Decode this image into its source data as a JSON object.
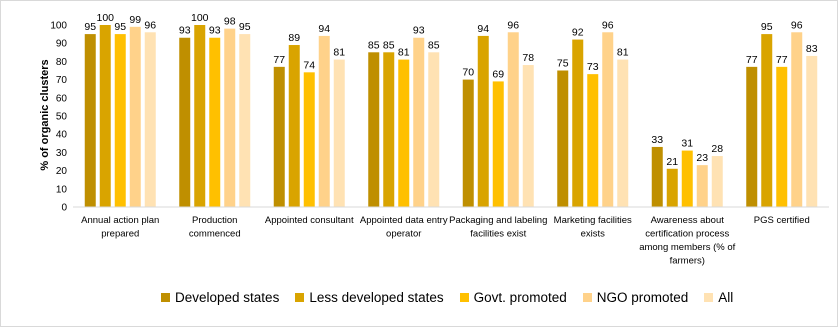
{
  "chart_data": {
    "type": "bar",
    "ylabel": "% of organic clusters",
    "ylim": [
      0,
      100
    ],
    "yticks": [
      0,
      10,
      20,
      30,
      40,
      50,
      60,
      70,
      80,
      90,
      100
    ],
    "grid": false,
    "legend_position": "bottom",
    "categories": [
      [
        "Annual action plan",
        "prepared"
      ],
      [
        "Production",
        "commenced"
      ],
      [
        "Appointed consultant"
      ],
      [
        "Appointed data entry",
        "operator"
      ],
      [
        "Packaging and labeling",
        "facilities exist"
      ],
      [
        "Marketing facilities",
        "exists"
      ],
      [
        "Awareness about",
        "certification process",
        "among members (% of",
        "farmers)"
      ],
      [
        "PGS certified"
      ]
    ],
    "series": [
      {
        "name": "Developed states",
        "color": "#BF8F00",
        "values": [
          95,
          93,
          77,
          85,
          70,
          75,
          33,
          77
        ]
      },
      {
        "name": "Less developed states",
        "color": "#D9A400",
        "values": [
          100,
          100,
          89,
          85,
          94,
          92,
          21,
          95
        ]
      },
      {
        "name": "Govt. promoted",
        "color": "#FFC000",
        "values": [
          95,
          93,
          74,
          81,
          69,
          73,
          31,
          77
        ]
      },
      {
        "name": "NGO promoted",
        "color": "#FFD28A",
        "values": [
          99,
          98,
          94,
          93,
          96,
          96,
          23,
          96
        ]
      },
      {
        "name": "All",
        "color": "#FFE2B3",
        "values": [
          96,
          95,
          81,
          85,
          78,
          81,
          28,
          83
        ]
      }
    ]
  }
}
